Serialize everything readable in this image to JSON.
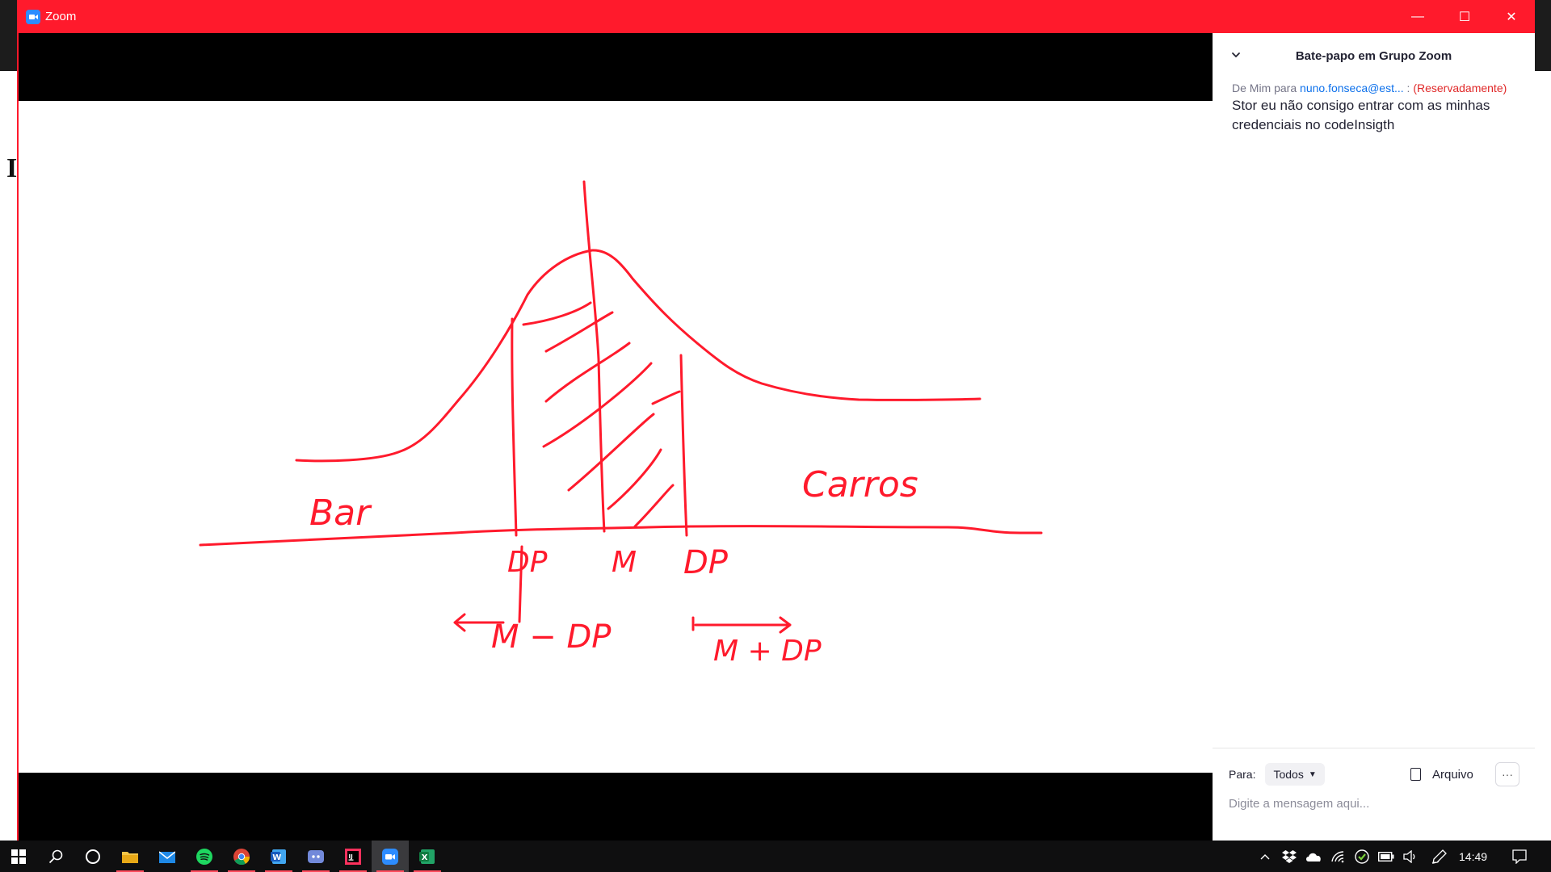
{
  "window": {
    "title": "Zoom",
    "accent_color": "#ff1a2c",
    "controls": {
      "minimize": "—",
      "maximize": "☐",
      "close": "✕"
    }
  },
  "background": {
    "partial_letter": "I"
  },
  "whiteboard": {
    "ink_color": "#ff1a2c",
    "labels": {
      "left_word": "Bar",
      "right_word": "Carros",
      "tick_left": "DP",
      "tick_center": "M",
      "tick_right": "DP",
      "minus_expr": "M − DP",
      "plus_expr": "M + DP"
    }
  },
  "chat": {
    "title": "Bate-papo em Grupo Zoom",
    "message": {
      "from": "De Mim para",
      "to": "nuno.fonseca@est...",
      "separator": ":",
      "privacy": "(Reservadamente)",
      "text": "Stor eu não consigo entrar com as minhas credenciais no codeInsigth"
    },
    "footer": {
      "to_label": "Para:",
      "to_value": "Todos",
      "file_label": "Arquivo",
      "more_label": "···",
      "input_placeholder": "Digite a mensagem aqui..."
    }
  },
  "taskbar": {
    "clock": "14:49",
    "apps": [
      "start-icon",
      "search-icon",
      "cortana-icon",
      "file-explorer-icon",
      "mail-icon",
      "spotify-icon",
      "chrome-icon",
      "word-icon",
      "discord-icon",
      "intellij-icon",
      "zoom-icon",
      "excel-icon"
    ]
  }
}
